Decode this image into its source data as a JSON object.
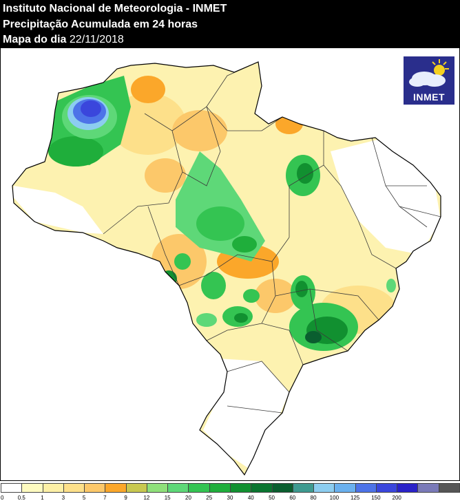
{
  "header": {
    "line1": "Instituto Nacional de Meteorologia - INMET",
    "line2": "Precipitação Acumulada em 24 horas",
    "line3_prefix": "Mapa do dia",
    "line3_date": "22/11/2018"
  },
  "logo": {
    "text": "INMET",
    "icon": "sun-cloud-icon"
  },
  "legend": {
    "ticks": [
      "0",
      "0.5",
      "1",
      "3",
      "5",
      "7",
      "9",
      "12",
      "15",
      "20",
      "25",
      "30",
      "40",
      "50",
      "60",
      "80",
      "100",
      "125",
      "150",
      "200"
    ],
    "colors": [
      "#ffffff",
      "#fefbc0",
      "#fdf0a6",
      "#fde08a",
      "#fcc86a",
      "#fba72a",
      "#c8c850",
      "#8fe07a",
      "#5ed878",
      "#34c452",
      "#1fae3b",
      "#119030",
      "#0a7530",
      "#0a5e2f",
      "#3e9a90",
      "#8ccdf0",
      "#6ab0ee",
      "#4d73e8",
      "#3a46dc",
      "#2a22c8",
      "#7a7ab8",
      "#555555"
    ]
  },
  "colors": {
    "background": "#ffffff",
    "header_bg": "#000000",
    "header_text": "#ffffff",
    "logo_bg": "#2a2e8c"
  }
}
